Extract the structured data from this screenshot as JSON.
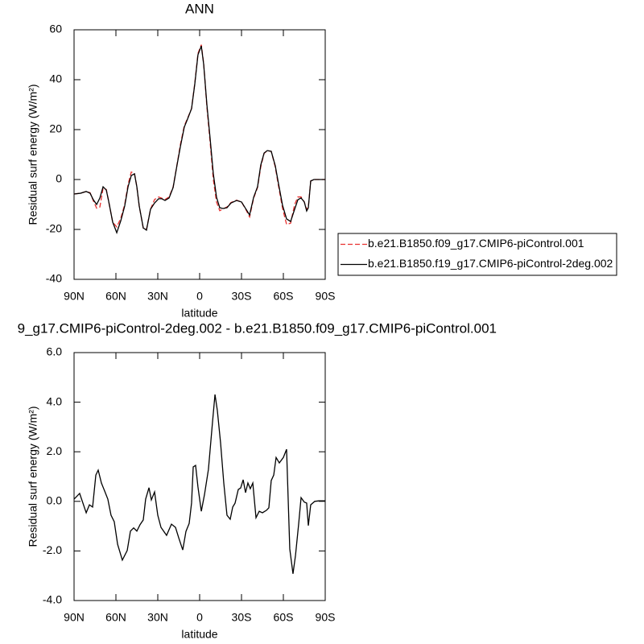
{
  "chart_data": [
    {
      "type": "line",
      "title": "ANN",
      "xlabel": "latitude",
      "ylabel": "Residual surf energy (W/m²)",
      "xlim": [
        90,
        -90
      ],
      "ylim": [
        -40,
        60
      ],
      "xticks": [
        {
          "value": 90,
          "label": "90N"
        },
        {
          "value": 60,
          "label": "60N"
        },
        {
          "value": 30,
          "label": "30N"
        },
        0,
        {
          "value": -30,
          "label": "30S"
        },
        {
          "value": -60,
          "label": "60S"
        },
        {
          "value": -90,
          "label": "90S"
        }
      ],
      "yticks": [
        -40,
        -20,
        0,
        20,
        40,
        60
      ],
      "legend": "outside-right",
      "x": [
        90,
        85.4,
        81.3,
        78.5,
        76.2,
        73.8,
        71.5,
        69.2,
        66.9,
        65.2,
        62.3,
        59.4,
        56.5,
        53.7,
        51.3,
        49.0,
        46.7,
        45.0,
        43.3,
        40.4,
        38.1,
        35.2,
        32.3,
        29.4,
        27.1,
        24.8,
        21.9,
        19.0,
        16.2,
        13.8,
        11.0,
        8.7,
        5.8,
        3.5,
        1.2,
        -1.2,
        -2.9,
        -5.2,
        -7.5,
        -9.8,
        -12.1,
        -14.4,
        -16.7,
        -19.6,
        -22.5,
        -26.5,
        -30.0,
        -32.9,
        -35.8,
        -38.7,
        -41.5,
        -43.8,
        -46.2,
        -48.5,
        -51.3,
        -54.2,
        -56.5,
        -59.4,
        -62.3,
        -65.2,
        -68.1,
        -70.4,
        -72.7,
        -75.0,
        -76.7,
        -77.9,
        -79.6,
        -81.9,
        -90
      ],
      "series": [
        {
          "name": "b.e21.B1850.f09_g17.CMIP6-piControl.001",
          "color": "#e8302f",
          "line_style": "dashed",
          "values": [
            -5.8,
            -5.5,
            -4.8,
            -5.3,
            -8.5,
            -11.5,
            -11.0,
            -3.5,
            -4.0,
            -8.7,
            -17.1,
            -19.0,
            -15.5,
            -10.0,
            -2.0,
            3.0,
            2.5,
            -2.9,
            -10.6,
            -19.5,
            -20.0,
            -11.9,
            -8.0,
            -7.0,
            -7.5,
            -8.0,
            -7.0,
            -3.0,
            6.0,
            14.0,
            21.5,
            24.5,
            28.4,
            38.5,
            50.5,
            54.0,
            46.5,
            29.0,
            15.0,
            0.0,
            -9.0,
            -12.5,
            -11.8,
            -11.0,
            -9.2,
            -8.3,
            -9.0,
            -11.8,
            -15.0,
            -7.5,
            -3.2,
            5.0,
            10.5,
            11.5,
            11.3,
            5.0,
            -2.5,
            -11.5,
            -18.0,
            -17.5,
            -10.0,
            -7.0,
            -7.0,
            -9.0,
            -12.0,
            -11.0,
            -0.6,
            0,
            0
          ]
        },
        {
          "name": "b.e21.B1850.f19_g17.CMIP6-piControl-2deg.002",
          "color": "#000000",
          "line_style": "solid",
          "values": [
            -5.8,
            -5.5,
            -4.8,
            -5.5,
            -8.1,
            -10.0,
            -7.4,
            -2.9,
            -4.2,
            -8.7,
            -17.1,
            -21.3,
            -16.5,
            -10.6,
            -2.9,
            1.6,
            2.3,
            -2.9,
            -10.6,
            -19.4,
            -20.3,
            -11.9,
            -9.4,
            -7.7,
            -7.7,
            -8.4,
            -7.4,
            -3.2,
            5.8,
            13.2,
            21.0,
            24.2,
            28.4,
            38.1,
            50.0,
            53.5,
            46.1,
            30.0,
            16.5,
            2.3,
            -7.1,
            -11.3,
            -11.6,
            -11.3,
            -9.4,
            -8.4,
            -9.0,
            -11.6,
            -14.2,
            -7.1,
            -2.9,
            5.8,
            10.6,
            11.6,
            11.3,
            5.5,
            -1.6,
            -10.3,
            -15.8,
            -16.8,
            -11.9,
            -8.1,
            -7.4,
            -9.0,
            -12.6,
            -11.3,
            -0.6,
            0,
            0
          ]
        }
      ]
    },
    {
      "type": "line",
      "title": "9_g17.CMIP6-piControl-2deg.002 - b.e21.B1850.f09_g17.CMIP6-piControl.001",
      "xlabel": "latitude",
      "ylabel": "Residual surf energy (W/m²)",
      "xlim": [
        90,
        -90
      ],
      "ylim": [
        -4,
        6
      ],
      "xticks": [
        {
          "value": 90,
          "label": "90N"
        },
        {
          "value": 60,
          "label": "60N"
        },
        {
          "value": 30,
          "label": "30N"
        },
        0,
        {
          "value": -30,
          "label": "30S"
        },
        {
          "value": -60,
          "label": "60S"
        },
        {
          "value": -90,
          "label": "90S"
        }
      ],
      "yticks": [
        {
          "value": -4,
          "label": "-4.0"
        },
        {
          "value": -2,
          "label": "-2.0"
        },
        {
          "value": 0,
          "label": "0.0"
        },
        {
          "value": 2,
          "label": "2.0"
        },
        {
          "value": 4,
          "label": "4.0"
        },
        {
          "value": 6,
          "label": "6.0"
        }
      ],
      "x": [
        90,
        86.0,
        81.3,
        79.0,
        76.7,
        74.4,
        72.7,
        70.4,
        68.1,
        65.8,
        63.5,
        61.2,
        58.8,
        55.4,
        51.9,
        49.6,
        47.3,
        45.0,
        42.7,
        40.4,
        38.7,
        36.3,
        34.6,
        32.3,
        30.0,
        27.7,
        23.7,
        20.2,
        17.3,
        15.0,
        12.1,
        9.8,
        7.5,
        5.8,
        4.6,
        2.9,
        1.2,
        -1.2,
        -3.5,
        -6.3,
        -9.2,
        -11.0,
        -12.7,
        -15.0,
        -17.3,
        -19.6,
        -21.9,
        -23.7,
        -25.4,
        -27.7,
        -29.4,
        -31.2,
        -32.9,
        -34.6,
        -36.3,
        -38.1,
        -40.4,
        -42.7,
        -45.0,
        -47.9,
        -49.6,
        -51.3,
        -53.1,
        -54.8,
        -57.1,
        -60.0,
        -62.3,
        -64.6,
        -66.9,
        -68.7,
        -71.0,
        -72.7,
        -75.0,
        -76.7,
        -77.9,
        -79.6,
        -82.5,
        -85.4,
        -90
      ],
      "series": [
        {
          "color": "#000000",
          "line_style": "solid",
          "values": [
            0.09,
            0.32,
            -0.46,
            -0.14,
            -0.23,
            1.06,
            1.26,
            0.74,
            0.42,
            0.09,
            -0.56,
            -0.82,
            -1.73,
            -2.37,
            -1.98,
            -1.2,
            -1.07,
            -1.2,
            -0.94,
            -0.75,
            0.09,
            0.55,
            0.06,
            0.38,
            -0.56,
            -1.05,
            -1.37,
            -0.92,
            -1.05,
            -1.47,
            -1.96,
            -1.21,
            -0.89,
            -0.07,
            1.39,
            1.45,
            0.58,
            -0.4,
            0.28,
            1.29,
            3.18,
            4.31,
            3.66,
            2.36,
            0.74,
            -0.56,
            -0.72,
            -0.23,
            -0.07,
            0.48,
            0.54,
            0.87,
            0.35,
            0.74,
            0.51,
            0.74,
            -0.66,
            -0.4,
            -0.46,
            -0.36,
            -0.26,
            0.84,
            1.06,
            1.77,
            1.55,
            1.77,
            2.1,
            -1.92,
            -2.92,
            -2.18,
            -0.89,
            0.15,
            -0.03,
            -0.07,
            -0.98,
            -0.14,
            0.0,
            0.02,
            0.02
          ]
        }
      ]
    }
  ]
}
